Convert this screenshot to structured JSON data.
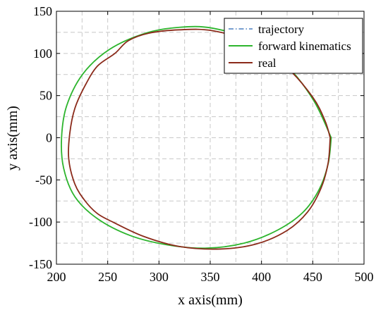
{
  "chart_data": {
    "type": "line",
    "xlabel": "x axis(mm)",
    "ylabel": "y axis(mm)",
    "xlim": [
      200,
      500
    ],
    "ylim": [
      -150,
      150
    ],
    "xticks": [
      200,
      250,
      300,
      350,
      400,
      450,
      500
    ],
    "yticks": [
      -150,
      -100,
      -50,
      0,
      50,
      100,
      150
    ],
    "grid": true,
    "legend_position": "top-right",
    "series": [
      {
        "name": "trajectory",
        "color": "#4a7fc0",
        "style": "dash-dot",
        "x": [
          468,
          465,
          456,
          440,
          415,
          383,
          345,
          308,
          272,
          240,
          218,
          207,
          205,
          210,
          226,
          252,
          287,
          320,
          352,
          392,
          425,
          451,
          468
        ],
        "y": [
          0,
          -31,
          -62,
          -89,
          -110,
          -125,
          -131,
          -127,
          -116,
          -96,
          -70,
          -36,
          0,
          38,
          76,
          105,
          124,
          131,
          130,
          115,
          85,
          44,
          0
        ]
      },
      {
        "name": "forward kinematics",
        "color": "#2db52d",
        "style": "solid",
        "x": [
          468,
          465,
          456,
          440,
          415,
          383,
          345,
          308,
          272,
          240,
          218,
          207,
          205,
          210,
          226,
          252,
          287,
          320,
          352,
          392,
          425,
          451,
          468
        ],
        "y": [
          0,
          -31,
          -62,
          -89,
          -110,
          -125,
          -131,
          -127,
          -116,
          -96,
          -70,
          -36,
          0,
          38,
          76,
          105,
          124,
          131,
          130,
          115,
          85,
          44,
          0
        ]
      },
      {
        "name": "real",
        "color": "#8b2a1a",
        "style": "solid",
        "x": [
          467,
          465,
          458,
          445,
          425,
          395,
          360,
          320,
          285,
          255,
          240,
          228,
          218,
          212,
          213,
          218,
          228,
          240,
          257,
          270,
          290,
          320,
          352,
          390,
          425,
          450,
          462,
          467
        ],
        "y": [
          0,
          -30,
          -60,
          -88,
          -110,
          -126,
          -132,
          -129,
          -117,
          -100,
          -90,
          -75,
          -55,
          -25,
          5,
          35,
          62,
          85,
          100,
          115,
          124,
          128,
          127,
          113,
          83,
          48,
          20,
          0
        ]
      }
    ]
  }
}
